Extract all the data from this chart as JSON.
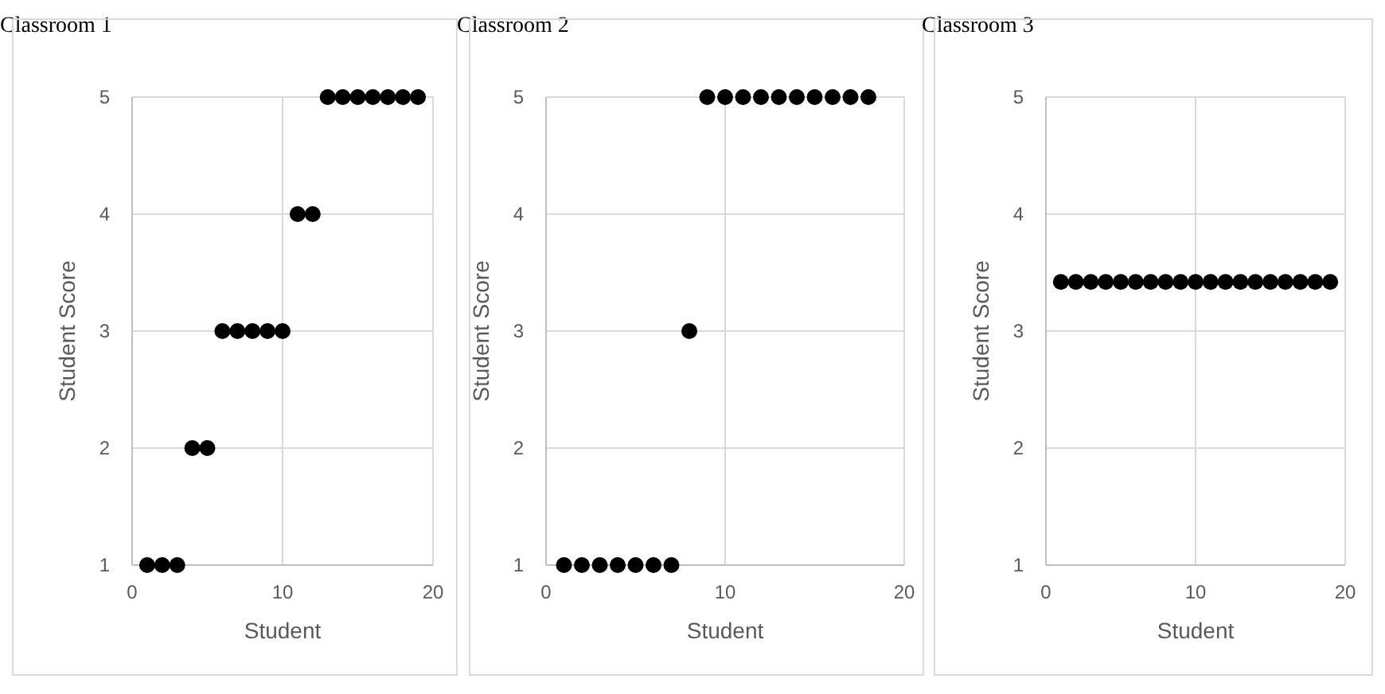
{
  "chart_data": [
    {
      "type": "scatter",
      "title": "Classroom 1",
      "xlabel": "Student",
      "ylabel": "Student Score",
      "x": [
        1,
        2,
        3,
        4,
        5,
        6,
        7,
        8,
        9,
        10,
        11,
        12,
        13,
        14,
        15,
        16,
        17,
        18,
        19
      ],
      "series": [
        {
          "color": "#000000",
          "values": [
            1,
            1,
            1,
            2,
            2,
            3,
            3,
            3,
            3,
            3,
            4,
            4,
            5,
            5,
            5,
            5,
            5,
            5,
            5
          ]
        }
      ],
      "xlim": [
        0,
        20
      ],
      "xticks": [
        0,
        10,
        20
      ],
      "ylim": [
        1,
        5
      ],
      "yticks": [
        1,
        2,
        3,
        4,
        5
      ],
      "grid": true,
      "marker": "circle"
    },
    {
      "type": "scatter",
      "title": "Classroom 2",
      "xlabel": "Student",
      "ylabel": "Student Score",
      "x": [
        1,
        2,
        3,
        4,
        5,
        6,
        7,
        8,
        9,
        10,
        11,
        12,
        13,
        14,
        15,
        16,
        17,
        18
      ],
      "series": [
        {
          "color": "#000000",
          "values": [
            1,
            1,
            1,
            1,
            1,
            1,
            1,
            3,
            5,
            5,
            5,
            5,
            5,
            5,
            5,
            5,
            5,
            5
          ]
        }
      ],
      "xlim": [
        0,
        20
      ],
      "xticks": [
        0,
        10,
        20
      ],
      "ylim": [
        1,
        5
      ],
      "yticks": [
        1,
        2,
        3,
        4,
        5
      ],
      "grid": true,
      "marker": "circle"
    },
    {
      "type": "scatter",
      "title": "Classroom 3",
      "xlabel": "Student",
      "ylabel": "Student Score",
      "x": [
        1,
        2,
        3,
        4,
        5,
        6,
        7,
        8,
        9,
        10,
        11,
        12,
        13,
        14,
        15,
        16,
        17,
        18,
        19
      ],
      "series": [
        {
          "color": "#000000",
          "values": [
            3.42,
            3.42,
            3.42,
            3.42,
            3.42,
            3.42,
            3.42,
            3.42,
            3.42,
            3.42,
            3.42,
            3.42,
            3.42,
            3.42,
            3.42,
            3.42,
            3.42,
            3.42,
            3.42
          ]
        }
      ],
      "xlim": [
        0,
        20
      ],
      "xticks": [
        0,
        10,
        20
      ],
      "ylim": [
        1,
        5
      ],
      "yticks": [
        1,
        2,
        3,
        4,
        5
      ],
      "grid": true,
      "marker": "circle"
    }
  ]
}
